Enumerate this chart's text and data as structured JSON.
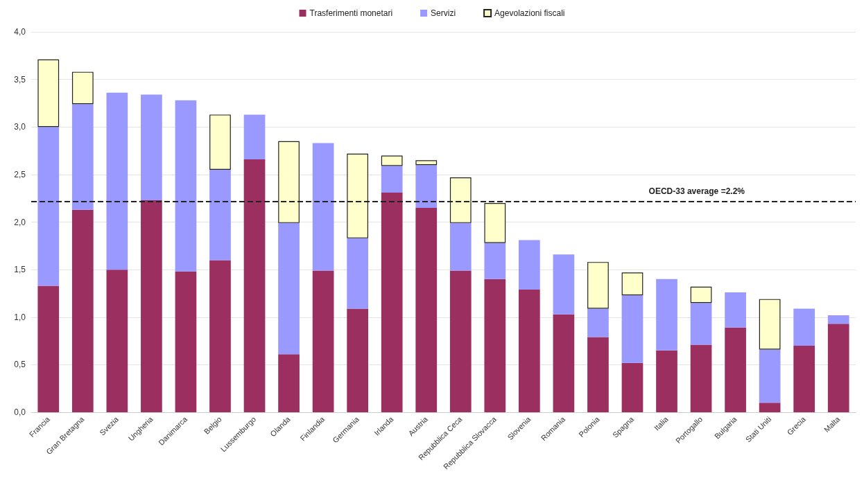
{
  "chart_data": {
    "type": "bar",
    "stacked": true,
    "legend": "top",
    "grid": "y",
    "categories": [
      "Francia",
      "Gran Bretagna",
      "Svezia",
      "Ungheria",
      "Danimarca",
      "Belgio",
      "Lussemburgo",
      "Olanda",
      "Finlandia",
      "Germania",
      "Irlanda",
      "Austria",
      "Repubblica Ceca",
      "Repubblica Slovacca",
      "Slovenia",
      "Romania",
      "Polonia",
      "Spagna",
      "Italia",
      "Portogallo",
      "Bulgaria",
      "Stati Uniti",
      "Grecia",
      "Malta"
    ],
    "series": [
      {
        "name": "Trasferimenti monetari",
        "color": "#9b3060",
        "values": [
          1.33,
          2.13,
          1.5,
          2.23,
          1.48,
          1.6,
          2.66,
          0.61,
          1.49,
          1.09,
          2.31,
          2.15,
          1.49,
          1.4,
          1.29,
          1.03,
          0.79,
          0.52,
          0.65,
          0.71,
          0.89,
          0.1,
          0.7,
          0.93
        ]
      },
      {
        "name": "Servizi",
        "color": "#9999ff",
        "values": [
          1.67,
          1.11,
          1.86,
          1.11,
          1.8,
          0.95,
          0.47,
          1.38,
          1.34,
          0.74,
          0.28,
          0.45,
          0.5,
          0.38,
          0.52,
          0.63,
          0.3,
          0.71,
          0.75,
          0.44,
          0.37,
          0.56,
          0.39,
          0.09
        ]
      },
      {
        "name": "Agevolazioni fiscali",
        "color": "#ffffcc",
        "values": [
          0.71,
          0.34,
          null,
          null,
          null,
          0.58,
          null,
          0.86,
          null,
          0.89,
          0.11,
          0.05,
          0.48,
          0.42,
          null,
          null,
          0.49,
          0.24,
          null,
          0.17,
          null,
          0.53,
          null,
          null
        ]
      }
    ],
    "ylim": [
      0,
      4
    ],
    "yticks": [
      {
        "value": 0,
        "label": "0,0"
      },
      {
        "value": 0.5,
        "label": "0,5"
      },
      {
        "value": 1,
        "label": "1,0"
      },
      {
        "value": 1.5,
        "label": "1,5"
      },
      {
        "value": 2,
        "label": "2,0"
      },
      {
        "value": 2.5,
        "label": "2,5"
      },
      {
        "value": 3,
        "label": "3,0"
      },
      {
        "value": 3.5,
        "label": "3,5"
      },
      {
        "value": 4,
        "label": "4,0"
      }
    ],
    "ref_lines": [
      {
        "axis": "y",
        "value": 2.22,
        "label": "OECD-33 average =2.2%",
        "color": "#222222",
        "line_style": "dashed"
      }
    ]
  }
}
